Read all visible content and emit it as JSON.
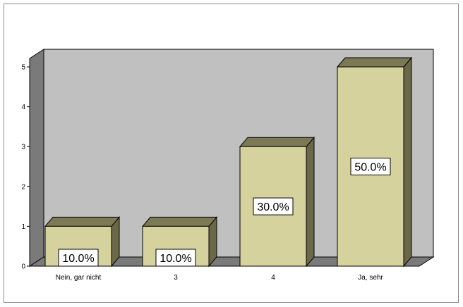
{
  "chart_data": {
    "type": "bar",
    "categories": [
      "Nein, gar nicht",
      "3",
      "4",
      "Ja, sehr"
    ],
    "values": [
      1,
      1,
      3,
      5
    ],
    "data_labels": [
      "10.0%",
      "10.0%",
      "30.0%",
      "50.0%"
    ],
    "yticks": [
      "0",
      "1",
      "2",
      "3",
      "4",
      "5"
    ],
    "ylim": [
      0,
      5
    ],
    "title": "",
    "xlabel": "",
    "ylabel": "",
    "grid": false,
    "legend": "none",
    "colors": {
      "bar_front": "#d6d29e",
      "bar_top": "#7c7956",
      "bar_side": "#6b6849",
      "back_wall": "#c0c0c0",
      "left_wall": "#7a7a7a",
      "floor": "#7a7a7a",
      "outline": "#000000",
      "label_box": "#ffffff"
    }
  }
}
